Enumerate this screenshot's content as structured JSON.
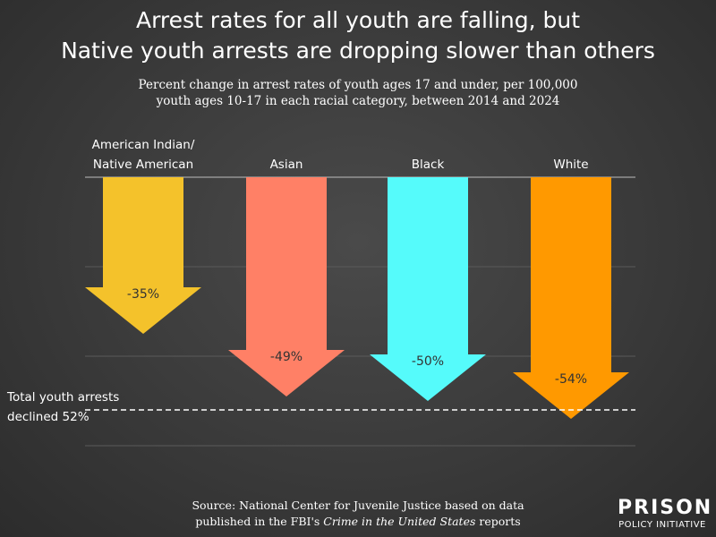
{
  "header": {
    "title_line1": "Arrest rates for all youth are falling, but",
    "title_line2": "Native youth arrests are dropping slower than others",
    "subtitle_line1": "Percent change in arrest rates of youth ages 17 and under, per 100,000",
    "subtitle_line2": "youth ages 10-17 in each racial category, between 2014 and 2024"
  },
  "chart_data": {
    "type": "bar",
    "categories": [
      "American Indian/ Native American",
      "Asian",
      "Black",
      "White"
    ],
    "category_lines": [
      [
        "American Indian/",
        "Native American"
      ],
      [
        "Asian"
      ],
      [
        "Black"
      ],
      [
        "White"
      ]
    ],
    "values": [
      -35,
      -49,
      -50,
      -54
    ],
    "value_labels": [
      "-35%",
      "-49%",
      "-50%",
      "-54%"
    ],
    "colors": [
      "#f4c22b",
      "#ff8066",
      "#55fbfb",
      "#ff9900"
    ],
    "ylim": [
      -60,
      0
    ],
    "grid": true,
    "reference_line": {
      "value": -52,
      "label_line1": "Total youth arrests",
      "label_line2": "declined 52%"
    }
  },
  "footer": {
    "source_line1": "Source: National Center for Juvenile Justice based on data",
    "source_line2_prefix": "published in the FBI's ",
    "source_line2_italic": "Crime in the United States",
    "source_line2_suffix": " reports"
  },
  "logo": {
    "top": "PRISON",
    "bottom": "POLICY INITIATIVE"
  }
}
